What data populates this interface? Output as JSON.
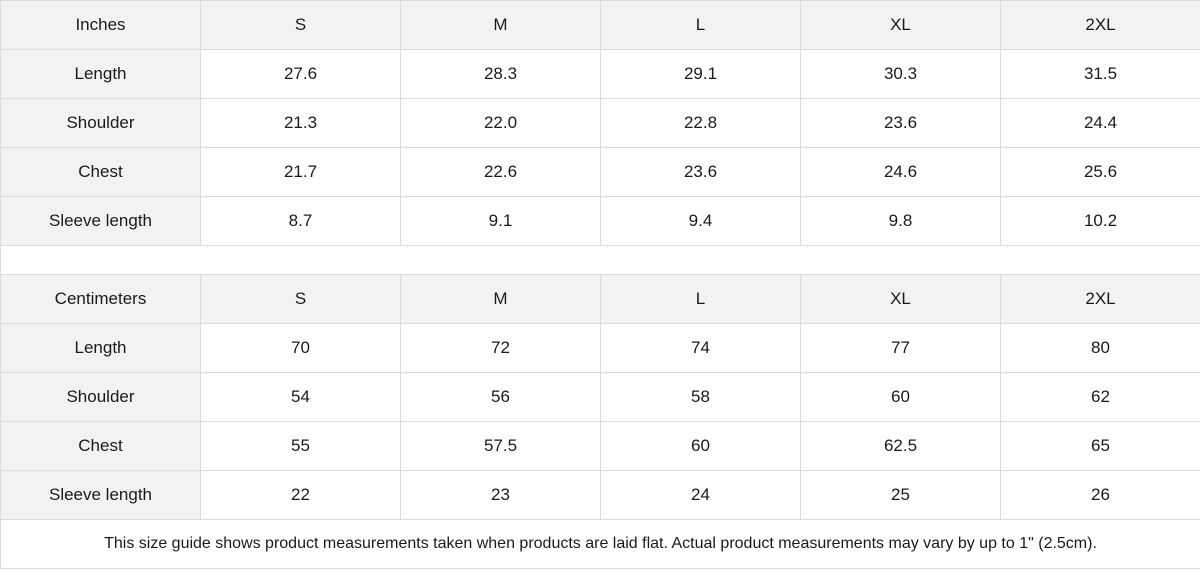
{
  "tables": [
    {
      "unit": "Inches",
      "sizes": [
        "S",
        "M",
        "L",
        "XL",
        "2XL"
      ],
      "rows": [
        {
          "label": "Length",
          "values": [
            "27.6",
            "28.3",
            "29.1",
            "30.3",
            "31.5"
          ]
        },
        {
          "label": "Shoulder",
          "values": [
            "21.3",
            "22.0",
            "22.8",
            "23.6",
            "24.4"
          ]
        },
        {
          "label": "Chest",
          "values": [
            "21.7",
            "22.6",
            "23.6",
            "24.6",
            "25.6"
          ]
        },
        {
          "label": "Sleeve length",
          "values": [
            "8.7",
            "9.1",
            "9.4",
            "9.8",
            "10.2"
          ]
        }
      ]
    },
    {
      "unit": "Centimeters",
      "sizes": [
        "S",
        "M",
        "L",
        "XL",
        "2XL"
      ],
      "rows": [
        {
          "label": "Length",
          "values": [
            "70",
            "72",
            "74",
            "77",
            "80"
          ]
        },
        {
          "label": "Shoulder",
          "values": [
            "54",
            "56",
            "58",
            "60",
            "62"
          ]
        },
        {
          "label": "Chest",
          "values": [
            "55",
            "57.5",
            "60",
            "62.5",
            "65"
          ]
        },
        {
          "label": "Sleeve length",
          "values": [
            "22",
            "23",
            "24",
            "25",
            "26"
          ]
        }
      ]
    }
  ],
  "note": "This size guide shows product measurements taken when products are laid flat.  Actual product measurements may vary by up to 1\" (2.5cm).",
  "colors": {
    "header_bg": "#f2f2f2",
    "border": "#dcdcdc"
  }
}
